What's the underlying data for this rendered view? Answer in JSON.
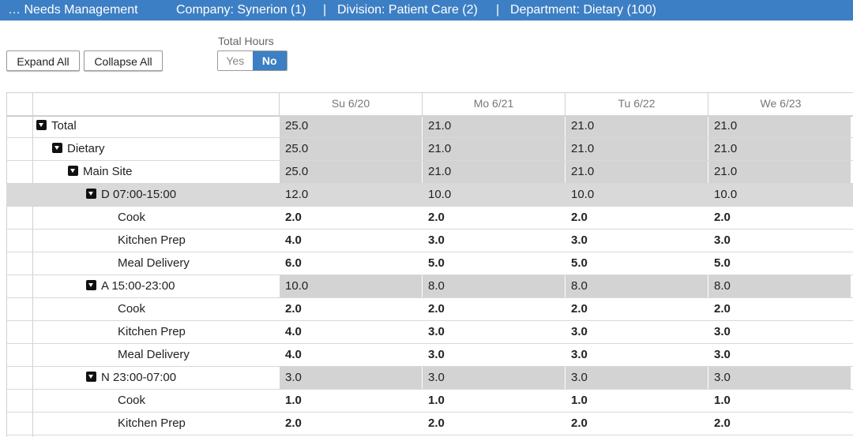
{
  "header": {
    "title": "… Needs Management",
    "company": "Company: Synerion (1)",
    "sep1": "|",
    "division": "Division: Patient Care (2)",
    "sep2": "|",
    "department": "Department: Dietary (100)"
  },
  "toolbar": {
    "expand_all": "Expand All",
    "collapse_all": "Collapse All",
    "total_hours_label": "Total Hours",
    "yes": "Yes",
    "no": "No",
    "total_hours_selected": "No"
  },
  "columns": [
    "Su 6/20",
    "Mo 6/21",
    "Tu 6/22",
    "We 6/23"
  ],
  "rows": [
    {
      "label": "Total",
      "values": [
        "25.0",
        "21.0",
        "21.0",
        "21.0"
      ]
    },
    {
      "label": "Dietary",
      "values": [
        "25.0",
        "21.0",
        "21.0",
        "21.0"
      ]
    },
    {
      "label": "Main Site",
      "values": [
        "25.0",
        "21.0",
        "21.0",
        "21.0"
      ]
    },
    {
      "label": "D 07:00-15:00",
      "values": [
        "12.0",
        "10.0",
        "10.0",
        "10.0"
      ]
    },
    {
      "label": "Cook",
      "values": [
        "2.0",
        "2.0",
        "2.0",
        "2.0"
      ]
    },
    {
      "label": "Kitchen Prep",
      "values": [
        "4.0",
        "3.0",
        "3.0",
        "3.0"
      ]
    },
    {
      "label": "Meal Delivery",
      "values": [
        "6.0",
        "5.0",
        "5.0",
        "5.0"
      ]
    },
    {
      "label": "A 15:00-23:00",
      "values": [
        "10.0",
        "8.0",
        "8.0",
        "8.0"
      ]
    },
    {
      "label": "Cook",
      "values": [
        "2.0",
        "2.0",
        "2.0",
        "2.0"
      ]
    },
    {
      "label": "Kitchen Prep",
      "values": [
        "4.0",
        "3.0",
        "3.0",
        "3.0"
      ]
    },
    {
      "label": "Meal Delivery",
      "values": [
        "4.0",
        "3.0",
        "3.0",
        "3.0"
      ]
    },
    {
      "label": "N 23:00-07:00",
      "values": [
        "3.0",
        "3.0",
        "3.0",
        "3.0"
      ]
    },
    {
      "label": "Cook",
      "values": [
        "1.0",
        "1.0",
        "1.0",
        "1.0"
      ]
    },
    {
      "label": "Kitchen Prep",
      "values": [
        "2.0",
        "2.0",
        "2.0",
        "2.0"
      ]
    }
  ],
  "colors": {
    "accent": "#3d7fc4",
    "subtotal_bg": "#d3d3d3",
    "selected_row_bg": "#d9d9d9"
  },
  "icons": {
    "expanded": "caret-down-icon"
  }
}
